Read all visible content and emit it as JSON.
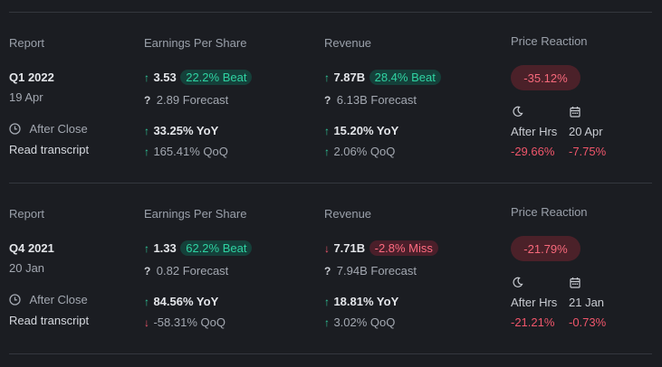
{
  "reports": [
    {
      "header_report": "Report",
      "header_eps": "Earnings Per Share",
      "header_revenue": "Revenue",
      "header_price": "Price Reaction",
      "quarter": "Q1 2022",
      "date": "19 Apr",
      "timing": "After Close",
      "transcript": "Read transcript",
      "eps": {
        "actual": "3.53",
        "actual_dir": "up",
        "surprise": "22.2% Beat",
        "surprise_type": "beat",
        "forecast": "2.89 Forecast",
        "yoy": "33.25% YoY",
        "yoy_dir": "up",
        "qoq": "165.41% QoQ",
        "qoq_dir": "up"
      },
      "revenue": {
        "actual": "7.87B",
        "actual_dir": "up",
        "surprise": "28.4% Beat",
        "surprise_type": "beat",
        "forecast": "6.13B Forecast",
        "yoy": "15.20% YoY",
        "yoy_dir": "up",
        "qoq": "2.06% QoQ",
        "qoq_dir": "up"
      },
      "price": {
        "reaction": "-35.12%",
        "after_label": "After Hrs",
        "after_value": "-29.66%",
        "next_date": "20 Apr",
        "next_value": "-7.75%"
      }
    },
    {
      "header_report": "Report",
      "header_eps": "Earnings Per Share",
      "header_revenue": "Revenue",
      "header_price": "Price Reaction",
      "quarter": "Q4 2021",
      "date": "20 Jan",
      "timing": "After Close",
      "transcript": "Read transcript",
      "eps": {
        "actual": "1.33",
        "actual_dir": "up",
        "surprise": "62.2% Beat",
        "surprise_type": "beat",
        "forecast": "0.82 Forecast",
        "yoy": "84.56% YoY",
        "yoy_dir": "up",
        "qoq": "-58.31% QoQ",
        "qoq_dir": "down"
      },
      "revenue": {
        "actual": "7.71B",
        "actual_dir": "down",
        "surprise": "-2.8% Miss",
        "surprise_type": "miss",
        "forecast": "7.94B Forecast",
        "yoy": "18.81% YoY",
        "yoy_dir": "up",
        "qoq": "3.02% QoQ",
        "qoq_dir": "up"
      },
      "price": {
        "reaction": "-21.79%",
        "after_label": "After Hrs",
        "after_value": "-21.21%",
        "next_date": "21 Jan",
        "next_value": "-0.73%"
      }
    }
  ],
  "colors": {
    "background": "#1b1d22",
    "positive": "#2fc79a",
    "negative": "#f0566b",
    "beat_badge_bg": "#15403a",
    "miss_badge_bg": "#4a1f2a",
    "pill_bg": "#4b2129"
  },
  "icons": {
    "up": "arrow-up-icon",
    "down": "arrow-down-icon",
    "forecast": "question-mark-icon",
    "timing": "clock-icon",
    "after_hours": "moon-icon",
    "next_day": "calendar-icon"
  }
}
